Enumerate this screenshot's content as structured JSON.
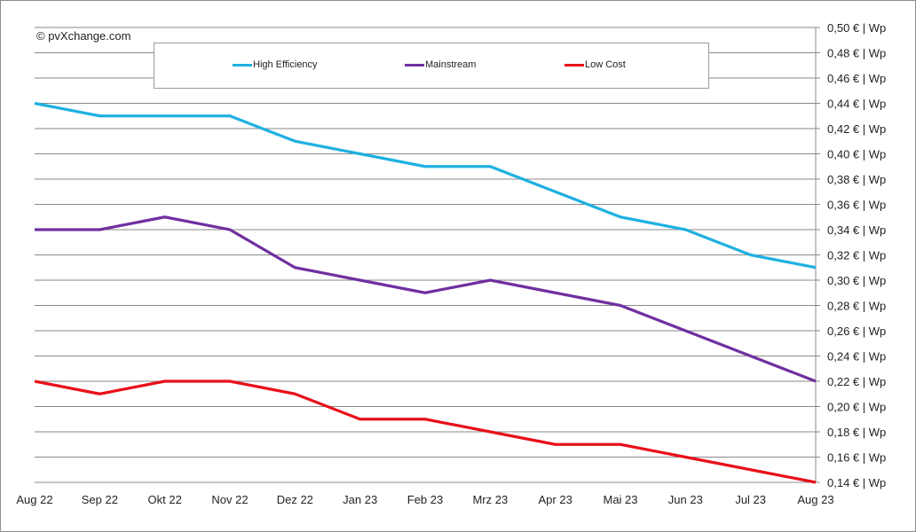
{
  "watermark": "© pvXchange.com",
  "chart_data": {
    "type": "line",
    "categories": [
      "Aug 22",
      "Sep 22",
      "Okt 22",
      "Nov 22",
      "Dez 22",
      "Jan 23",
      "Feb 23",
      "Mrz 23",
      "Apr 23",
      "Mai 23",
      "Jun 23",
      "Jul 23",
      "Aug 23"
    ],
    "y_ticks": [
      "0,14 € | Wp",
      "0,16 € | Wp",
      "0,18 € | Wp",
      "0,20 € | Wp",
      "0,22 € | Wp",
      "0,24 € | Wp",
      "0,26 € | Wp",
      "0,28 € | Wp",
      "0,30 € | Wp",
      "0,32 € | Wp",
      "0,34 € | Wp",
      "0,36 € | Wp",
      "0,38 € | Wp",
      "0,40 € | Wp",
      "0,42 € | Wp",
      "0,44 € | Wp",
      "0,46 € | Wp",
      "0,48 € | Wp",
      "0,50 € | Wp"
    ],
    "ylim": [
      0.14,
      0.5
    ],
    "y_axis_position": "right",
    "grid": true,
    "legend_position": "top",
    "series": [
      {
        "name": "High Efficiency",
        "color": "#1fb0e0",
        "values": [
          0.44,
          0.43,
          0.43,
          0.43,
          0.41,
          0.4,
          0.39,
          0.39,
          0.37,
          0.35,
          0.34,
          0.32,
          0.31
        ]
      },
      {
        "name": "Mainstream",
        "color": "#7030a0",
        "values": [
          0.34,
          0.34,
          0.35,
          0.34,
          0.31,
          0.3,
          0.29,
          0.3,
          0.29,
          0.28,
          0.26,
          0.24,
          0.22
        ]
      },
      {
        "name": "Low Cost",
        "color": "#e8101a",
        "values": [
          0.22,
          0.21,
          0.22,
          0.22,
          0.21,
          0.19,
          0.19,
          0.18,
          0.17,
          0.17,
          0.16,
          0.15,
          0.14
        ]
      }
    ]
  }
}
